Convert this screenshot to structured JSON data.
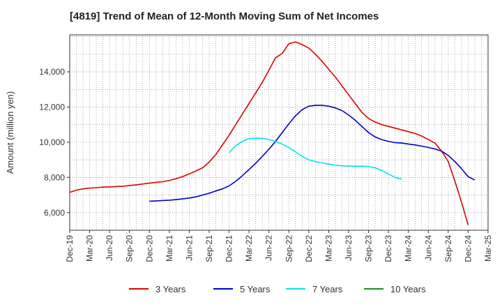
{
  "chart_data": {
    "type": "line",
    "title": "[4819]  Trend of Mean of 12-Month Moving Sum of Net Incomes",
    "ylabel": "Amount (million yen)",
    "xlabel": "",
    "x_ticks": [
      "Dec-19",
      "Mar-20",
      "Jun-20",
      "Sep-20",
      "Dec-20",
      "Mar-21",
      "Jun-21",
      "Sep-21",
      "Dec-21",
      "Mar-22",
      "Jun-22",
      "Sep-22",
      "Dec-22",
      "Mar-23",
      "Jun-23",
      "Sep-23",
      "Dec-23",
      "Mar-24",
      "Jun-24",
      "Sep-24",
      "Dec-24",
      "Mar-25"
    ],
    "y_ticks": [
      6000,
      8000,
      10000,
      12000,
      14000
    ],
    "y_tick_labels": [
      "6,000",
      "8,000",
      "10,000",
      "12,000",
      "14,000"
    ],
    "ylim": [
      5000,
      16100
    ],
    "grid": true,
    "legend_position": "bottom",
    "series": [
      {
        "name": "3 Years",
        "color": "#dd0000",
        "start_index": 0,
        "values": [
          7150,
          7280,
          7350,
          7400,
          7420,
          7450,
          7460,
          7480,
          7500,
          7540,
          7580,
          7630,
          7680,
          7720,
          7760,
          7830,
          7930,
          8050,
          8200,
          8370,
          8550,
          8870,
          9300,
          9850,
          10400,
          11000,
          11600,
          12200,
          12800,
          13400,
          14100,
          14800,
          15050,
          15600,
          15700,
          15550,
          15350,
          15000,
          14600,
          14150,
          13700,
          13200,
          12700,
          12200,
          11700,
          11350,
          11150,
          11000,
          10900,
          10800,
          10700,
          10600,
          10500,
          10350,
          10150,
          9950,
          9500,
          8900,
          7800,
          6600,
          5300
        ]
      },
      {
        "name": "5 Years",
        "color": "#0000cc",
        "start_index": 12,
        "values": [
          6650,
          6670,
          6690,
          6710,
          6740,
          6780,
          6830,
          6900,
          7000,
          7100,
          7230,
          7350,
          7520,
          7780,
          8100,
          8450,
          8800,
          9200,
          9600,
          10050,
          10550,
          11050,
          11500,
          11850,
          12050,
          12100,
          12100,
          12050,
          11950,
          11800,
          11550,
          11250,
          10900,
          10550,
          10300,
          10150,
          10050,
          9980,
          9950,
          9900,
          9850,
          9780,
          9700,
          9620,
          9500,
          9250,
          8900,
          8500,
          8050,
          7850
        ]
      },
      {
        "name": "7 Years",
        "color": "#00e5ee",
        "start_index": 24,
        "values": [
          9400,
          9800,
          10050,
          10200,
          10230,
          10220,
          10150,
          10050,
          9900,
          9700,
          9450,
          9200,
          9000,
          8900,
          8820,
          8760,
          8700,
          8660,
          8650,
          8640,
          8640,
          8620,
          8550,
          8400,
          8200,
          8000,
          7900
        ]
      },
      {
        "name": "10 Years",
        "color": "#228b22",
        "start_index": 0,
        "values": []
      }
    ]
  }
}
